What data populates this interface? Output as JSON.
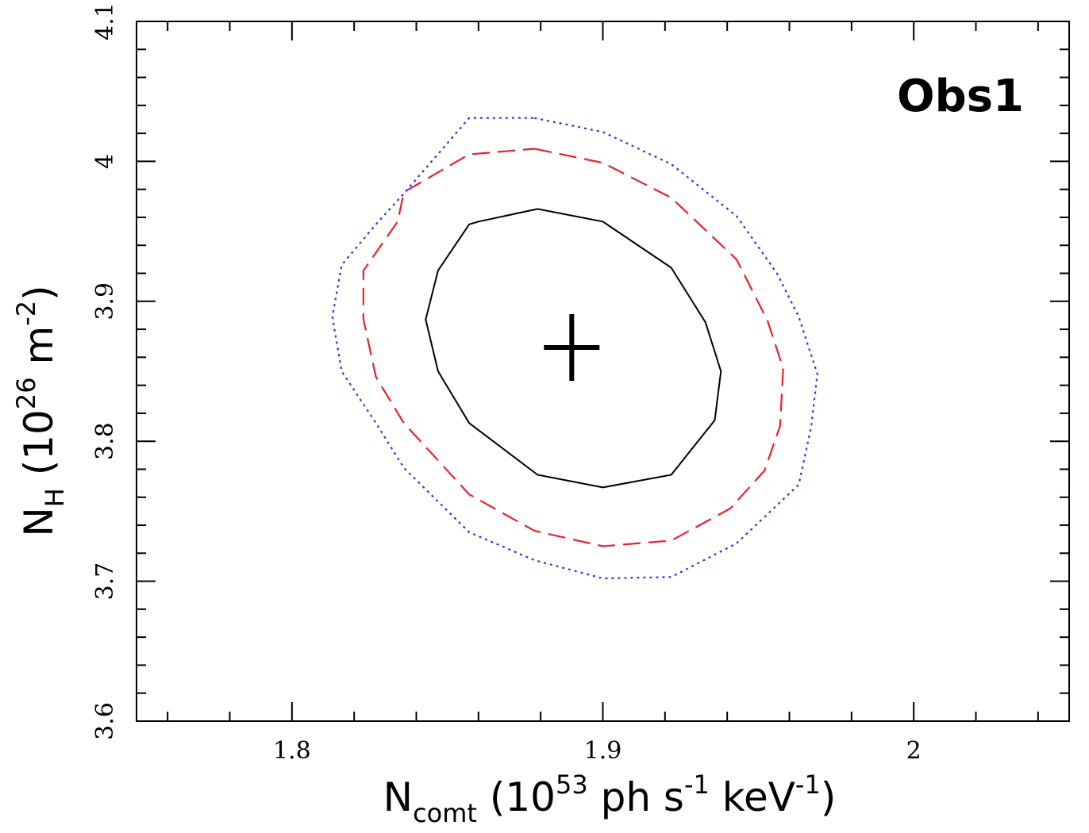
{
  "chart_data": {
    "type": "line",
    "annotation": "Obs1",
    "xlabel": {
      "main": "N",
      "sub": "comt",
      "rest": " (10",
      "sup1": "53",
      "mid": " ph s",
      "sup2": "-1",
      "mid2": " keV",
      "sup3": "-1",
      "end": ")"
    },
    "ylabel": {
      "main": "N",
      "sub": "H",
      "rest": " (10",
      "sup1": "26",
      "mid": " m",
      "sup2": "-2",
      "end": ")"
    },
    "xlim": [
      1.75,
      2.05
    ],
    "ylim": [
      3.6,
      4.1
    ],
    "xticks": [
      1.8,
      1.9,
      2.0
    ],
    "xtick_labels": [
      "1.8",
      "1.9",
      "2"
    ],
    "yticks": [
      3.6,
      3.7,
      3.8,
      3.9,
      4.0,
      4.1
    ],
    "ytick_labels": [
      "3.6",
      "3.7",
      "3.8",
      "3.9",
      "4",
      "4.1"
    ],
    "grid": false,
    "best_fit": {
      "x": 1.89,
      "y": 3.867
    },
    "series": [
      {
        "style": "solid",
        "color": "#000000",
        "points": [
          [
            1.879,
            3.966
          ],
          [
            1.9,
            3.957
          ],
          [
            1.922,
            3.924
          ],
          [
            1.933,
            3.885
          ],
          [
            1.938,
            3.85
          ],
          [
            1.936,
            3.815
          ],
          [
            1.922,
            3.776
          ],
          [
            1.9,
            3.767
          ],
          [
            1.879,
            3.776
          ],
          [
            1.857,
            3.813
          ],
          [
            1.847,
            3.85
          ],
          [
            1.843,
            3.887
          ],
          [
            1.847,
            3.922
          ],
          [
            1.857,
            3.955
          ],
          [
            1.86,
            3.957
          ],
          [
            1.879,
            3.966
          ]
        ]
      },
      {
        "style": "dashed",
        "color": "#e8222a",
        "points": [
          [
            1.878,
            4.009
          ],
          [
            1.9,
            3.999
          ],
          [
            1.922,
            3.974
          ],
          [
            1.943,
            3.93
          ],
          [
            1.953,
            3.886
          ],
          [
            1.958,
            3.852
          ],
          [
            1.957,
            3.811
          ],
          [
            1.952,
            3.779
          ],
          [
            1.941,
            3.752
          ],
          [
            1.922,
            3.729
          ],
          [
            1.9,
            3.725
          ],
          [
            1.878,
            3.736
          ],
          [
            1.857,
            3.762
          ],
          [
            1.836,
            3.813
          ],
          [
            1.827,
            3.846
          ],
          [
            1.823,
            3.887
          ],
          [
            1.823,
            3.922
          ],
          [
            1.834,
            3.957
          ],
          [
            1.836,
            3.978
          ],
          [
            1.857,
            4.005
          ],
          [
            1.878,
            4.009
          ]
        ]
      },
      {
        "style": "dotted",
        "color": "#2b35e8",
        "points": [
          [
            1.878,
            4.031
          ],
          [
            1.9,
            4.021
          ],
          [
            1.922,
            3.998
          ],
          [
            1.943,
            3.961
          ],
          [
            1.956,
            3.92
          ],
          [
            1.963,
            3.889
          ],
          [
            1.969,
            3.848
          ],
          [
            1.967,
            3.81
          ],
          [
            1.963,
            3.769
          ],
          [
            1.943,
            3.727
          ],
          [
            1.922,
            3.703
          ],
          [
            1.9,
            3.702
          ],
          [
            1.878,
            3.715
          ],
          [
            1.857,
            3.735
          ],
          [
            1.836,
            3.781
          ],
          [
            1.827,
            3.813
          ],
          [
            1.816,
            3.85
          ],
          [
            1.813,
            3.889
          ],
          [
            1.816,
            3.926
          ],
          [
            1.827,
            3.955
          ],
          [
            1.836,
            3.977
          ],
          [
            1.857,
            4.031
          ],
          [
            1.878,
            4.031
          ]
        ]
      }
    ]
  }
}
